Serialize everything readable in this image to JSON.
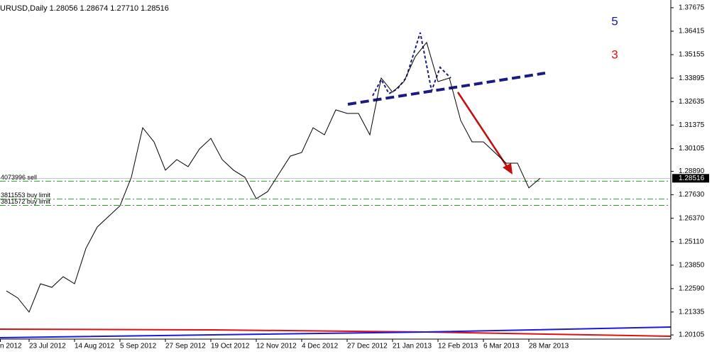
{
  "chart_data": {
    "type": "line",
    "title": "URUSD,Daily  1.28056 1.28674 1.27710 1.28516",
    "categories": [
      "n 2012",
      null,
      null,
      null,
      "23 Jul 2012",
      null,
      null,
      null,
      "14 Aug 2012",
      null,
      null,
      null,
      "5 Sep 2012",
      null,
      null,
      null,
      "27 Sep 2012",
      null,
      null,
      null,
      "19 Oct 2012",
      null,
      null,
      null,
      "12 Nov 2012",
      null,
      null,
      null,
      "4 Dec 2012",
      null,
      null,
      null,
      "27 Dec 2012",
      null,
      null,
      null,
      "21 Jan 2013",
      null,
      null,
      null,
      "12 Feb 2013",
      null,
      null,
      null,
      "6 Mar 2013",
      null,
      null,
      null,
      "28 Mar 2013",
      null
    ],
    "series": [
      {
        "name": "EURUSD",
        "color": "#000000",
        "values": [
          null,
          null,
          1.2247,
          1.2209,
          1.2133,
          1.2285,
          1.2266,
          1.2323,
          1.2285,
          1.2475,
          1.259,
          1.2647,
          1.2704,
          1.2857,
          1.3123,
          1.3047,
          1.2895,
          1.2952,
          1.2914,
          1.3009,
          1.3066,
          1.2952,
          1.2895,
          1.2857,
          1.2742,
          1.278,
          1.2876,
          1.2971,
          1.299,
          1.3123,
          1.3085,
          1.3219,
          1.32,
          1.32,
          1.3085,
          1.339,
          1.3314,
          1.3371,
          1.3505,
          1.3581,
          1.3371,
          1.339,
          1.3162,
          1.3047,
          1.3047,
          1.299,
          1.2933,
          1.2933,
          1.28,
          1.2852
        ]
      }
    ],
    "ylim": [
      1.1988,
      1.3809
    ],
    "yticks": [
      1.37675,
      1.36415,
      1.35155,
      1.33895,
      1.32635,
      1.31375,
      1.30105,
      {
        "value": 1.2889,
        "label": "1.28890"
      },
      {
        "value": 1.2763,
        "label": "1.27630"
      },
      {
        "value": 1.2637,
        "label": "1.26370"
      },
      {
        "value": 1.2511,
        "label": "1.25110"
      },
      {
        "value": 1.2385,
        "label": "1.23850"
      },
      {
        "value": 1.2259,
        "label": "1.22590"
      },
      1.21335,
      1.20105
    ],
    "last_price": 1.28516,
    "orders": [
      {
        "label": "4073996 sell",
        "value": 1.2836
      },
      {
        "label": "3811553 buy limit",
        "value": 1.274
      },
      {
        "label": "3811572 buy limit",
        "value": 1.2706
      }
    ],
    "counters": [
      {
        "value": 5,
        "color": "#1a1aa6"
      },
      {
        "value": 3,
        "color": "#e01010"
      }
    ],
    "grid": false
  }
}
